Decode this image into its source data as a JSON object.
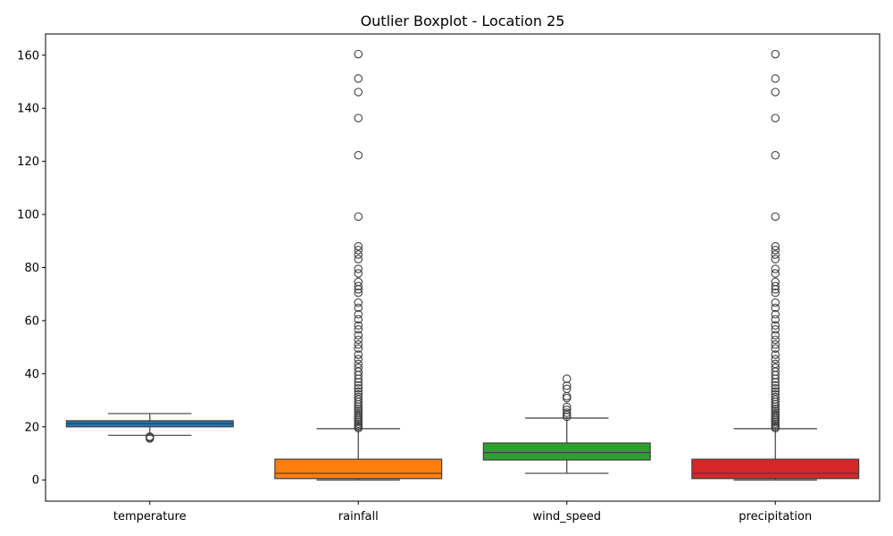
{
  "chart_data": {
    "type": "boxplot",
    "title": "Outlier Boxplot - Location 25",
    "xlabel": "",
    "ylabel": "",
    "ylim": [
      -8,
      168
    ],
    "yticks": [
      0,
      20,
      40,
      60,
      80,
      100,
      120,
      140,
      160
    ],
    "grid": false,
    "categories": [
      "temperature",
      "rainfall",
      "wind_speed",
      "precipitation"
    ],
    "colors": [
      "#1f77b4",
      "#ff7f0e",
      "#2ca02c",
      "#d62728"
    ],
    "boxes": [
      {
        "name": "temperature",
        "whisker_low": 16.8,
        "q1": 20.0,
        "median": 21.2,
        "q3": 22.3,
        "whisker_high": 25.0,
        "outliers": [
          15.6,
          16.0,
          16.3
        ]
      },
      {
        "name": "rainfall",
        "whisker_low": 0,
        "q1": 0.5,
        "median": 2.5,
        "q3": 7.8,
        "whisker_high": 19.3,
        "outliers": [
          19.5,
          20,
          20.6,
          21.2,
          21.9,
          22.5,
          23.1,
          23.8,
          24.5,
          25.3,
          26,
          26.8,
          27.6,
          28.5,
          29.4,
          30.3,
          31.2,
          32.2,
          33.3,
          34.5,
          35.6,
          36.8,
          38.1,
          39.5,
          40.8,
          42.3,
          43.7,
          45.5,
          47.2,
          49.5,
          51,
          52.8,
          54.5,
          56.7,
          58.2,
          60.5,
          62.4,
          64.8,
          66.8,
          70.5,
          71.8,
          73,
          74.6,
          77.8,
          79.5,
          83.2,
          84.9,
          86.6,
          88,
          99.2,
          122.3,
          136.3,
          146.1,
          151.2,
          160.4
        ]
      },
      {
        "name": "wind_speed",
        "whisker_low": 2.5,
        "q1": 7.5,
        "median": 10.3,
        "q3": 13.9,
        "whisker_high": 23.3,
        "outliers": [
          23.8,
          24.5,
          25.3,
          26.4,
          27.5,
          30.8,
          31.5,
          34.3,
          35.5,
          38.1
        ]
      },
      {
        "name": "precipitation",
        "whisker_low": 0,
        "q1": 0.5,
        "median": 2.5,
        "q3": 7.8,
        "whisker_high": 19.3,
        "outliers": [
          19.5,
          20,
          20.6,
          21.2,
          21.9,
          22.5,
          23.1,
          23.8,
          24.5,
          25.3,
          26,
          26.8,
          27.6,
          28.5,
          29.4,
          30.3,
          31.2,
          32.2,
          33.3,
          34.5,
          35.6,
          36.8,
          38.1,
          39.5,
          40.8,
          42.3,
          43.7,
          45.5,
          47.2,
          49.5,
          51,
          52.8,
          54.5,
          56.7,
          58.2,
          60.5,
          62.4,
          64.8,
          66.8,
          70.5,
          71.8,
          73,
          74.6,
          77.8,
          79.5,
          83.2,
          84.9,
          86.6,
          88,
          99.2,
          122.3,
          136.3,
          146.1,
          151.2,
          160.4
        ]
      }
    ]
  }
}
